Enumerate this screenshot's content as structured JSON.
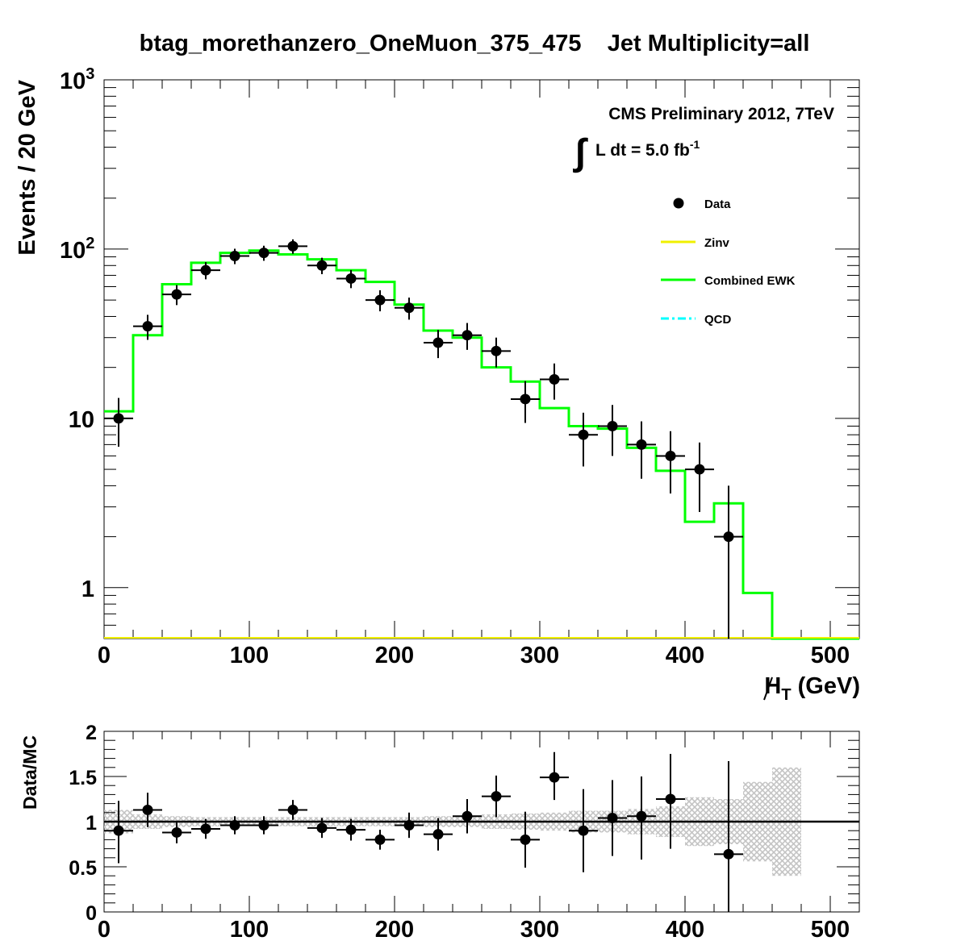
{
  "chart_data": [
    {
      "type": "line",
      "title": "btag_morethanzero_OneMuon_375_475    Jet Multiplicity=all",
      "xlabel": "H_T (GeV)",
      "xlabel_main": "H",
      "xlabel_sub": "T",
      "xlabel_unit": " (GeV)",
      "ylabel": "Events / 20 GeV",
      "yscale": "log",
      "xlim": [
        0,
        520
      ],
      "ylim": [
        0.5,
        1000
      ],
      "x_ticks": [
        0,
        100,
        200,
        300,
        400,
        500
      ],
      "x_tick_labels": [
        "0",
        "100",
        "200",
        "300",
        "400",
        "500"
      ],
      "y_ticks": [
        1,
        10
      ],
      "y_tick_labels": [
        "1",
        "10"
      ],
      "y_tick_pow": [
        {
          "value": 100,
          "base": "10",
          "exp": "2"
        },
        {
          "value": 1000,
          "base": "10",
          "exp": "3"
        }
      ],
      "annotation_line1": "CMS Preliminary 2012, 7TeV",
      "annotation_line2": "L dt = 5.0 fb",
      "annotation_exp": "-1",
      "annotation_integral": "∫",
      "legend": {
        "placement": "top-right",
        "entries": [
          {
            "label": "Data",
            "style": "marker",
            "color": "#000000"
          },
          {
            "label": "Zinv",
            "style": "line",
            "color": "#f0f000"
          },
          {
            "label": "Combined EWK",
            "style": "line",
            "color": "#00ff00"
          },
          {
            "label": "QCD",
            "style": "dashdot",
            "color": "#00ffff"
          }
        ]
      },
      "series": [
        {
          "name": "Data",
          "x": [
            10,
            30,
            50,
            70,
            90,
            110,
            130,
            150,
            170,
            190,
            210,
            230,
            250,
            270,
            290,
            310,
            330,
            350,
            370,
            390,
            410,
            430
          ],
          "y": [
            10,
            35,
            54,
            75,
            91,
            95,
            104,
            80,
            67,
            50,
            45,
            28,
            31,
            25,
            13,
            17,
            8,
            9,
            7,
            6,
            5,
            2
          ],
          "err_lo": [
            3.2,
            5.9,
            7.3,
            8.7,
            9.5,
            9.7,
            10.2,
            8.9,
            8.2,
            7.1,
            6.7,
            5.3,
            5.6,
            5,
            3.6,
            4.1,
            2.8,
            3,
            2.6,
            2.4,
            2.2,
            2
          ],
          "err_hi": [
            3.2,
            5.9,
            7.3,
            8.7,
            9.5,
            9.7,
            10.2,
            8.9,
            8.2,
            7.1,
            6.7,
            5.3,
            5.6,
            5,
            3.6,
            4.1,
            2.8,
            3,
            2.6,
            2.4,
            2.2,
            2
          ],
          "xerr": 10,
          "color": "#000000"
        },
        {
          "name": "Combined EWK",
          "bin_edges": [
            0,
            20,
            40,
            60,
            80,
            100,
            120,
            140,
            160,
            180,
            200,
            220,
            240,
            260,
            280,
            300,
            320,
            340,
            360,
            380,
            400,
            420,
            440,
            460,
            480,
            500,
            520
          ],
          "values": [
            11,
            31,
            62,
            83,
            95,
            98,
            93,
            87,
            75,
            64,
            47,
            33,
            30,
            20,
            16.5,
            11.5,
            9,
            8.7,
            6.7,
            4.9,
            2.45,
            3.15,
            0.93,
            0.5,
            0.5,
            0.5
          ],
          "color": "#00ff00"
        },
        {
          "name": "Zinv",
          "x": [
            0,
            520
          ],
          "y": [
            0.5,
            0.5
          ],
          "color": "#f0f000"
        }
      ]
    },
    {
      "type": "scatter",
      "ylabel": "Data/MC",
      "xlim": [
        0,
        520
      ],
      "ylim": [
        0,
        2
      ],
      "x_ticks": [
        0,
        100,
        200,
        300,
        400,
        500
      ],
      "x_tick_labels": [
        "0",
        "100",
        "200",
        "300",
        "400",
        "500"
      ],
      "y_ticks": [
        0,
        0.5,
        1,
        1.5,
        2
      ],
      "y_tick_labels": [
        "0",
        "0.5",
        "1",
        "1.5",
        "2"
      ],
      "reference_line": 1,
      "series": [
        {
          "name": "Data/MC",
          "x": [
            10,
            30,
            50,
            70,
            90,
            110,
            130,
            150,
            170,
            190,
            210,
            230,
            250,
            270,
            290,
            310,
            330,
            350,
            370,
            390,
            430
          ],
          "y": [
            0.9,
            1.13,
            0.88,
            0.92,
            0.96,
            0.96,
            1.13,
            0.93,
            0.91,
            0.8,
            0.96,
            0.86,
            1.06,
            1.28,
            0.8,
            1.49,
            0.9,
            1.04,
            1.06,
            1.25,
            0.64
          ],
          "err_lo": [
            0.36,
            0.19,
            0.12,
            0.11,
            0.1,
            0.1,
            0.11,
            0.11,
            0.12,
            0.11,
            0.14,
            0.18,
            0.19,
            0.23,
            0.31,
            0.25,
            0.46,
            0.42,
            0.48,
            0.55,
            0.64
          ],
          "err_hi": [
            0.33,
            0.19,
            0.12,
            0.11,
            0.1,
            0.1,
            0.11,
            0.11,
            0.12,
            0.11,
            0.14,
            0.18,
            0.19,
            0.23,
            0.31,
            0.28,
            0.46,
            0.42,
            0.44,
            0.5,
            1.03
          ],
          "xerr": 10,
          "color": "#000000"
        },
        {
          "name": "MC uncertainty",
          "bin_edges": [
            0,
            20,
            40,
            60,
            80,
            100,
            120,
            140,
            160,
            180,
            200,
            220,
            240,
            260,
            280,
            300,
            320,
            340,
            360,
            380,
            400,
            420,
            440,
            460,
            480
          ],
          "unc": [
            0.13,
            0.08,
            0.06,
            0.05,
            0.05,
            0.05,
            0.05,
            0.05,
            0.05,
            0.05,
            0.05,
            0.06,
            0.06,
            0.08,
            0.09,
            0.1,
            0.12,
            0.12,
            0.14,
            0.17,
            0.27,
            0.25,
            0.44,
            0.6
          ],
          "color": "#c0c0c0"
        }
      ]
    }
  ]
}
